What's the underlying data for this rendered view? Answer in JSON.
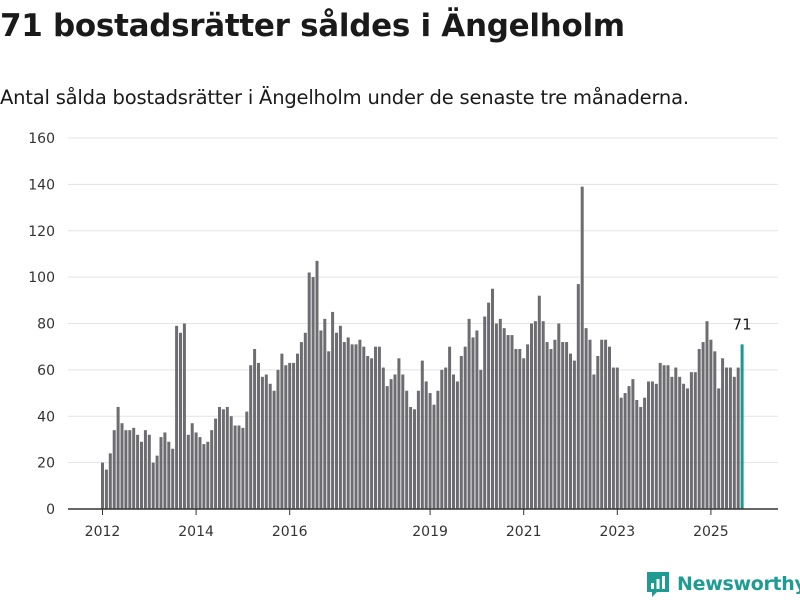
{
  "header": {
    "title": "71 bostadsrätter såldes i Ängelholm",
    "subtitle": "Antal sålda bostadsrätter i Ängelholm under de senaste tre månaderna."
  },
  "brand": {
    "name": "Newsworthy",
    "icon": "newsworthy-logo-icon"
  },
  "colors": {
    "bar": "#6d6c70",
    "highlight": "#1a9a8f",
    "grid": "#e3e3e3",
    "axis": "#333333",
    "brand": "#1e9b93"
  },
  "chart_data": {
    "type": "bar",
    "title": "71 bostadsrätter såldes i Ängelholm",
    "subtitle": "Antal sålda bostadsrätter i Ängelholm under de senaste tre månaderna.",
    "x_start": "2012-01",
    "x_ticks": [
      "2012",
      "2014",
      "2016",
      "2019",
      "2021",
      "2023",
      "2025"
    ],
    "ylim": [
      0,
      160
    ],
    "y_ticks": [
      0,
      20,
      40,
      60,
      80,
      100,
      120,
      140,
      160
    ],
    "grid": true,
    "highlight_label": "71",
    "values": [
      20,
      17,
      24,
      34,
      44,
      37,
      34,
      34,
      35,
      32,
      29,
      34,
      32,
      20,
      23,
      31,
      33,
      29,
      26,
      79,
      76,
      80,
      32,
      37,
      33,
      31,
      28,
      29,
      34,
      39,
      44,
      43,
      44,
      40,
      36,
      36,
      35,
      42,
      62,
      69,
      63,
      57,
      58,
      54,
      51,
      60,
      67,
      62,
      63,
      63,
      67,
      72,
      76,
      102,
      100,
      107,
      77,
      82,
      68,
      85,
      76,
      79,
      72,
      74,
      71,
      71,
      73,
      70,
      66,
      65,
      70,
      70,
      61,
      53,
      56,
      58,
      65,
      58,
      51,
      44,
      43,
      51,
      64,
      55,
      50,
      45,
      51,
      60,
      61,
      70,
      58,
      55,
      66,
      70,
      82,
      74,
      77,
      60,
      83,
      89,
      95,
      80,
      82,
      78,
      75,
      75,
      69,
      69,
      65,
      71,
      80,
      81,
      92,
      81,
      72,
      69,
      73,
      80,
      72,
      72,
      67,
      64,
      97,
      139,
      78,
      73,
      58,
      66,
      73,
      73,
      70,
      61,
      61,
      48,
      50,
      53,
      56,
      47,
      44,
      48,
      55,
      55,
      54,
      63,
      62,
      62,
      57,
      61,
      57,
      54,
      52,
      59,
      59,
      69,
      72,
      81,
      73,
      68,
      52,
      65,
      61,
      61,
      57,
      61,
      71
    ]
  }
}
